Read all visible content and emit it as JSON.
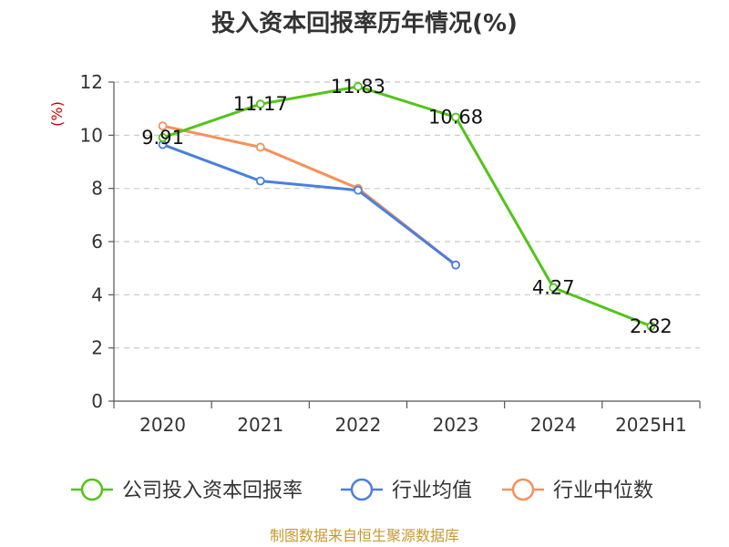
{
  "chart_data": {
    "type": "line",
    "title": "投入资本回报率历年情况(%)",
    "y_unit": "(%)",
    "categories": [
      "2020",
      "2021",
      "2022",
      "2023",
      "2024",
      "2025H1"
    ],
    "ylim": [
      0,
      12
    ],
    "yticks": [
      0,
      2,
      4,
      6,
      8,
      10,
      12
    ],
    "grid": true,
    "legend_position": "bottom",
    "series": [
      {
        "name": "公司投入资本回报率",
        "color": "#52c41a",
        "values": [
          9.91,
          11.17,
          11.83,
          10.68,
          4.27,
          2.82
        ],
        "labels": [
          "9.91",
          "11.17",
          "11.83",
          "10.68",
          "4.27",
          "2.82"
        ]
      },
      {
        "name": "行业均值",
        "color": "#4a7fde",
        "values": [
          9.65,
          8.28,
          7.93,
          5.12,
          null,
          null
        ]
      },
      {
        "name": "行业中位数",
        "color": "#f5915a",
        "values": [
          10.35,
          9.55,
          8.0,
          5.12,
          null,
          null
        ]
      }
    ],
    "source": "制图数据来自恒生聚源数据库"
  }
}
